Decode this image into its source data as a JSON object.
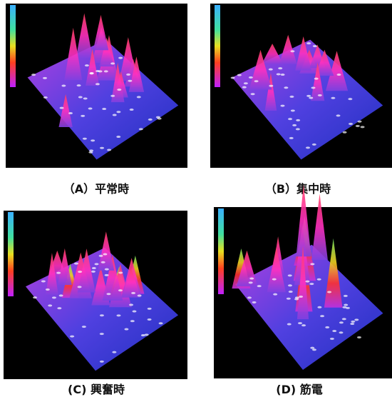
{
  "panels": [
    {
      "caption": "（A）平常時"
    },
    {
      "caption": "（B）集中時"
    },
    {
      "caption": "(C) 興奮時"
    },
    {
      "caption": "(D) 筋電"
    }
  ]
}
